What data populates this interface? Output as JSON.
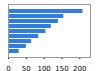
{
  "chart_data": {
    "type": "bar",
    "orientation": "horizontal",
    "categories": [
      null,
      null,
      null,
      null,
      null,
      null,
      null,
      null,
      null
    ],
    "values": [
      209,
      155,
      140,
      120,
      105,
      85,
      65,
      50,
      30
    ],
    "color": "#2f7de0",
    "xlim": [
      0,
      230
    ],
    "xticks": [
      0,
      50,
      100,
      150,
      200
    ],
    "grid": false,
    "tick_labels": "x"
  }
}
